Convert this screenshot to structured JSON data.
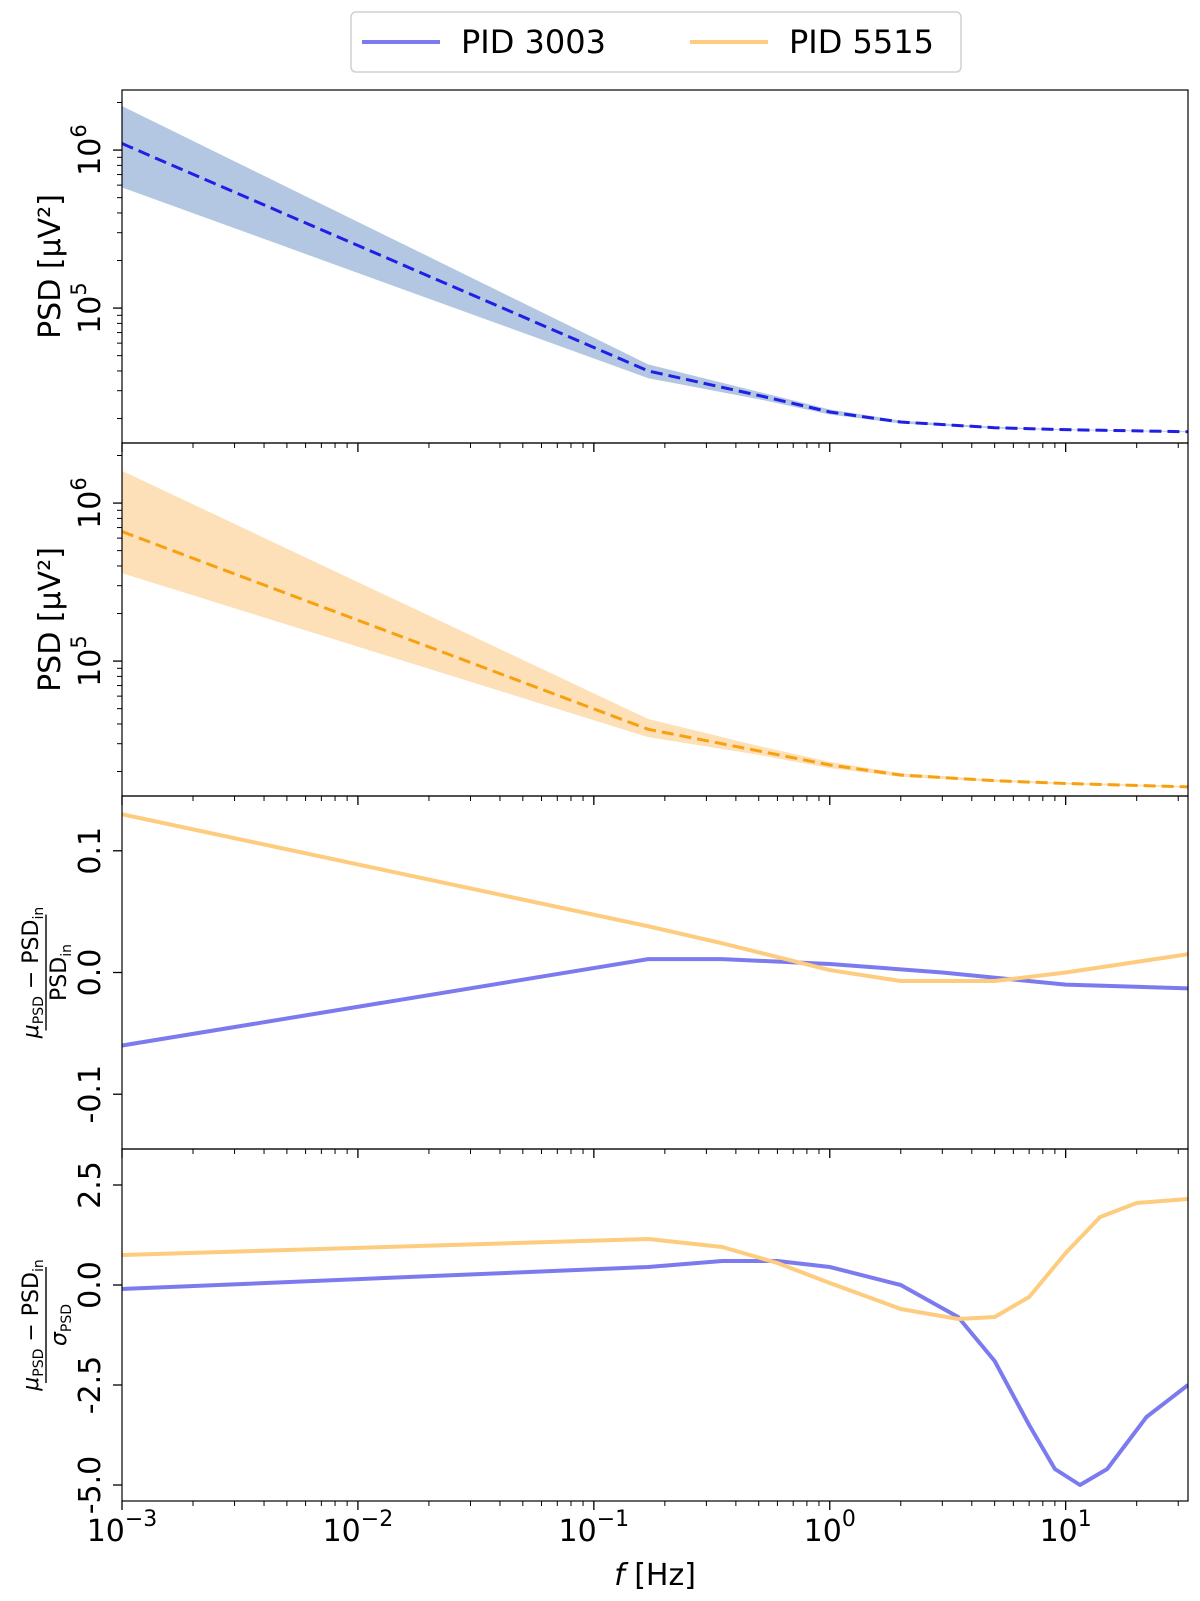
{
  "chart_data": {
    "type": "line",
    "legend": {
      "placement": "top-center",
      "entries": [
        {
          "name": "PID 3003",
          "color": "#7b7bef"
        },
        {
          "name": "PID 5515",
          "color": "#fdcc7e"
        }
      ]
    },
    "xaxis": {
      "label_symbol": "f",
      "label_unit": "[Hz]",
      "scale": "log",
      "xlim": [
        0.001,
        33
      ],
      "ticks": [
        {
          "value": 0.001,
          "base": "10",
          "exp": "−3"
        },
        {
          "value": 0.01,
          "base": "10",
          "exp": "−2"
        },
        {
          "value": 0.1,
          "base": "10",
          "exp": "−1"
        },
        {
          "value": 1,
          "base": "10",
          "exp": "0"
        },
        {
          "value": 10,
          "base": "10",
          "exp": "1"
        }
      ]
    },
    "panels": [
      {
        "id": "psd-3003",
        "ylabel": "PSD [μV²]",
        "yscale": "log",
        "ylim": [
          14000,
          2400000
        ],
        "yticks": [
          {
            "value": 100000,
            "base": "10",
            "exp": "5"
          },
          {
            "value": 1000000,
            "base": "10",
            "exp": "6"
          }
        ],
        "band_color": "#b4c7e2",
        "line_color": "#1f1fe6",
        "line_style": "dashed",
        "mean": [
          [
            0.001,
            1100000
          ],
          [
            0.17,
            40000
          ],
          [
            0.5,
            28000
          ],
          [
            1.0,
            22000
          ],
          [
            2.0,
            19000
          ],
          [
            5.0,
            17500
          ],
          [
            10.0,
            17000
          ],
          [
            33.0,
            16500
          ]
        ],
        "band_upper": [
          [
            0.001,
            1900000
          ],
          [
            0.17,
            44000
          ],
          [
            0.5,
            29500
          ],
          [
            1.0,
            22800
          ],
          [
            2.0,
            19400
          ],
          [
            5.0,
            17700
          ],
          [
            10.0,
            17100
          ],
          [
            33.0,
            16600
          ]
        ],
        "band_lower": [
          [
            0.001,
            580000
          ],
          [
            0.17,
            36000
          ],
          [
            0.5,
            26500
          ],
          [
            1.0,
            21200
          ],
          [
            2.0,
            18600
          ],
          [
            5.0,
            17300
          ],
          [
            10.0,
            16900
          ],
          [
            33.0,
            16400
          ]
        ]
      },
      {
        "id": "psd-5515",
        "ylabel": "PSD [μV²]",
        "yscale": "log",
        "ylim": [
          14000,
          2400000
        ],
        "yticks": [
          {
            "value": 100000,
            "base": "10",
            "exp": "5"
          },
          {
            "value": 1000000,
            "base": "10",
            "exp": "6"
          }
        ],
        "band_color": "#fde0b8",
        "line_color": "#f7a010",
        "line_style": "dashed",
        "mean": [
          [
            0.001,
            660000
          ],
          [
            0.17,
            37000
          ],
          [
            0.5,
            27000
          ],
          [
            1.0,
            22000
          ],
          [
            2.0,
            19000
          ],
          [
            5.0,
            17500
          ],
          [
            10.0,
            16800
          ],
          [
            33.0,
            16000
          ]
        ],
        "band_upper": [
          [
            0.001,
            1600000
          ],
          [
            0.17,
            43000
          ],
          [
            0.5,
            29000
          ],
          [
            1.0,
            23000
          ],
          [
            2.0,
            19500
          ],
          [
            5.0,
            17800
          ],
          [
            10.0,
            17000
          ],
          [
            33.0,
            16200
          ]
        ],
        "band_lower": [
          [
            0.001,
            360000
          ],
          [
            0.17,
            33000
          ],
          [
            0.5,
            25500
          ],
          [
            1.0,
            21000
          ],
          [
            2.0,
            18500
          ],
          [
            5.0,
            17200
          ],
          [
            10.0,
            16600
          ],
          [
            33.0,
            15800
          ]
        ]
      },
      {
        "id": "rel-dev",
        "ylabel_type": "relative",
        "ylabel_num_mu": "μ",
        "ylabel_num_mu_sub": "PSD",
        "ylabel_num_rest": " − PSD",
        "ylabel_num_rest_sub": "in",
        "ylabel_den": "PSD",
        "ylabel_den_sub": "in",
        "yscale": "linear",
        "ylim": [
          -0.145,
          0.145
        ],
        "yticks": [
          {
            "value": -0.1,
            "label": "-0.1"
          },
          {
            "value": 0.0,
            "label": "0.0"
          },
          {
            "value": 0.1,
            "label": "0.1"
          }
        ],
        "series": [
          {
            "name": "PID 3003",
            "color": "#7b7bef",
            "points": [
              [
                0.001,
                -0.06
              ],
              [
                0.17,
                0.011
              ],
              [
                0.35,
                0.011
              ],
              [
                1.0,
                0.007
              ],
              [
                3.0,
                0.0
              ],
              [
                10.0,
                -0.01
              ],
              [
                33.0,
                -0.013
              ]
            ]
          },
          {
            "name": "PID 5515",
            "color": "#fdcc7e",
            "points": [
              [
                0.001,
                0.13
              ],
              [
                0.17,
                0.038
              ],
              [
                0.35,
                0.024
              ],
              [
                1.0,
                0.002
              ],
              [
                2.0,
                -0.007
              ],
              [
                5.0,
                -0.007
              ],
              [
                10.0,
                0.0
              ],
              [
                33.0,
                0.015
              ]
            ]
          }
        ]
      },
      {
        "id": "norm-dev",
        "ylabel_type": "normalized",
        "ylabel_num_mu": "μ",
        "ylabel_num_mu_sub": "PSD",
        "ylabel_num_rest": " − PSD",
        "ylabel_num_rest_sub": "in",
        "ylabel_den": "σ",
        "ylabel_den_sub": "PSD",
        "yscale": "linear",
        "ylim": [
          -5.4,
          3.4
        ],
        "yticks": [
          {
            "value": -5.0,
            "label": "-5.0"
          },
          {
            "value": -2.5,
            "label": "-2.5"
          },
          {
            "value": 0.0,
            "label": "0.0"
          },
          {
            "value": 2.5,
            "label": "2.5"
          }
        ],
        "series": [
          {
            "name": "PID 3003",
            "color": "#7b7bef",
            "points": [
              [
                0.001,
                -0.1
              ],
              [
                0.17,
                0.45
              ],
              [
                0.35,
                0.6
              ],
              [
                0.6,
                0.6
              ],
              [
                1.0,
                0.45
              ],
              [
                2.0,
                0.0
              ],
              [
                3.5,
                -0.8
              ],
              [
                5.0,
                -1.9
              ],
              [
                7.0,
                -3.5
              ],
              [
                9.0,
                -4.6
              ],
              [
                11.5,
                -5.0
              ],
              [
                15.0,
                -4.6
              ],
              [
                22.0,
                -3.3
              ],
              [
                33.0,
                -2.5
              ]
            ]
          },
          {
            "name": "PID 5515",
            "color": "#fdcc7e",
            "points": [
              [
                0.001,
                0.75
              ],
              [
                0.17,
                1.15
              ],
              [
                0.35,
                0.95
              ],
              [
                0.6,
                0.55
              ],
              [
                1.0,
                0.05
              ],
              [
                2.0,
                -0.6
              ],
              [
                3.5,
                -0.85
              ],
              [
                5.0,
                -0.8
              ],
              [
                7.0,
                -0.3
              ],
              [
                10.0,
                0.8
              ],
              [
                14.0,
                1.7
              ],
              [
                20.0,
                2.05
              ],
              [
                33.0,
                2.15
              ]
            ]
          }
        ]
      }
    ]
  }
}
